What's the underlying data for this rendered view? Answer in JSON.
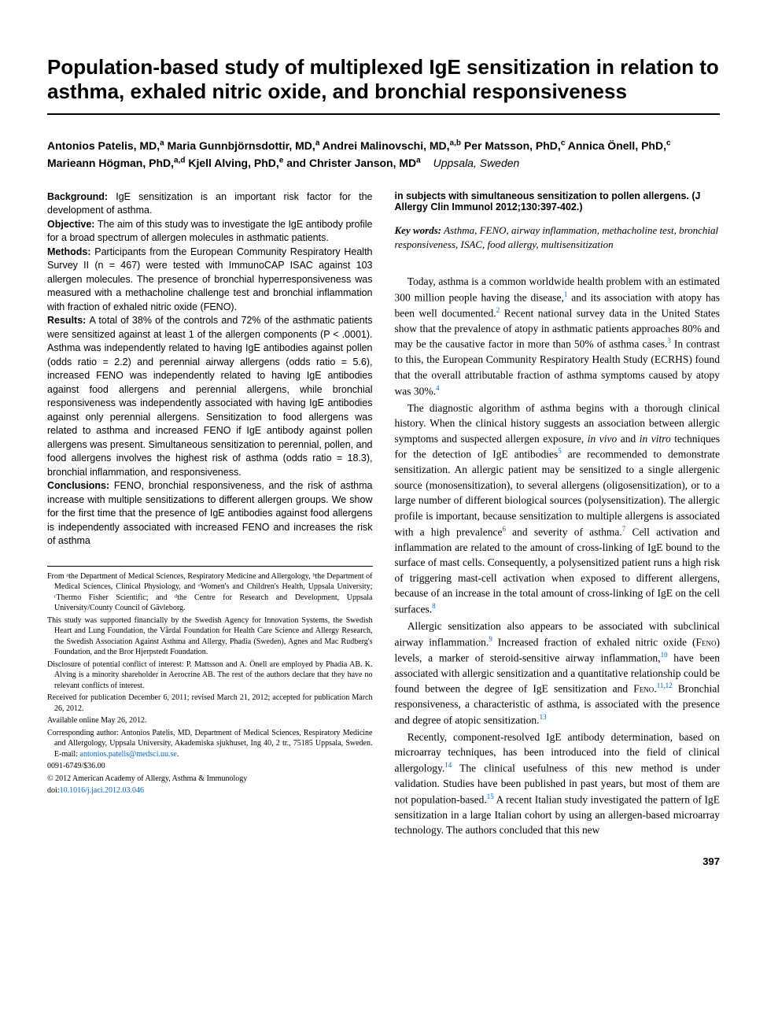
{
  "title": "Population-based study of multiplexed IgE sensitization in relation to asthma, exhaled nitric oxide, and bronchial responsiveness",
  "authors_html": "Antonios Patelis, MD,<sup>a</sup> Maria Gunnbjörnsdottir, MD,<sup>a</sup> Andrei Malinovschi, MD,<sup>a,b</sup> Per Matsson, PhD,<sup>c</sup> Annica Önell, PhD,<sup>c</sup> Marieann Högman, PhD,<sup>a,d</sup> Kjell Alving, PhD,<sup>e</sup> and Christer Janson, MD<sup>a</sup>",
  "location": "Uppsala, Sweden",
  "abstract": {
    "background": "IgE sensitization is an important risk factor for the development of asthma.",
    "objective": "The aim of this study was to investigate the IgE antibody profile for a broad spectrum of allergen molecules in asthmatic patients.",
    "methods": "Participants from the European Community Respiratory Health Survey II (n = 467) were tested with ImmunoCAP ISAC against 103 allergen molecules. The presence of bronchial hyperresponsiveness was measured with a methacholine challenge test and bronchial inflammation with fraction of exhaled nitric oxide (FENO).",
    "results": "A total of 38% of the controls and 72% of the asthmatic patients were sensitized against at least 1 of the allergen components (P < .0001). Asthma was independently related to having IgE antibodies against pollen (odds ratio = 2.2) and perennial airway allergens (odds ratio = 5.6), increased FENO was independently related to having IgE antibodies against food allergens and perennial allergens, while bronchial responsiveness was independently associated with having IgE antibodies against only perennial allergens. Sensitization to food allergens was related to asthma and increased FENO if IgE antibody against pollen allergens was present. Simultaneous sensitization to perennial, pollen, and food allergens involves the highest risk of asthma (odds ratio = 18.3), bronchial inflammation, and responsiveness.",
    "conclusions": "FENO, bronchial responsiveness, and the risk of asthma increase with multiple sensitizations to different allergen groups. We show for the first time that the presence of IgE antibodies against food allergens is independently associated with increased FENO and increases the risk of asthma",
    "conclusions_cont": "in subjects with simultaneous sensitization to pollen allergens. (J Allergy Clin Immunol 2012;130:397-402.)"
  },
  "keywords_label": "Key words:",
  "keywords": "Asthma, FENO, airway inflammation, methacholine test, bronchial responsiveness, ISAC, food allergy, multisensitization",
  "body": {
    "p1": "Today, asthma is a common worldwide health problem with an estimated 300 million people having the disease,¹ and its association with atopy has been well documented.² Recent national survey data in the United States show that the prevalence of atopy in asthmatic patients approaches 80% and may be the causative factor in more than 50% of asthma cases.³ In contrast to this, the European Community Respiratory Health Study (ECRHS) found that the overall attributable fraction of asthma symptoms caused by atopy was 30%.⁴",
    "p2": "The diagnostic algorithm of asthma begins with a thorough clinical history. When the clinical history suggests an association between allergic symptoms and suspected allergen exposure, in vivo and in vitro techniques for the detection of IgE antibodies⁵ are recommended to demonstrate sensitization. An allergic patient may be sensitized to a single allergenic source (monosensitization), to several allergens (oligosensitization), or to a large number of different biological sources (polysensitization). The allergic profile is important, because sensitization to multiple allergens is associated with a high prevalence⁶ and severity of asthma.⁷ Cell activation and inflammation are related to the amount of cross-linking of IgE bound to the surface of mast cells. Consequently, a polysensitized patient runs a high risk of triggering mast-cell activation when exposed to different allergens, because of an increase in the total amount of cross-linking of IgE on the cell surfaces.⁸",
    "p3": "Allergic sensitization also appears to be associated with subclinical airway inflammation.⁹ Increased fraction of exhaled nitric oxide (FENO) levels, a marker of steroid-sensitive airway inflammation,¹⁰ have been associated with allergic sensitization and a quantitative relationship could be found between the degree of IgE sensitization and FENO.¹¹,¹² Bronchial responsiveness, a characteristic of asthma, is associated with the presence and degree of atopic sensitization.¹³",
    "p4": "Recently, component-resolved IgE antibody determination, based on microarray techniques, has been introduced into the field of clinical allergology.¹⁴ The clinical usefulness of this new method is under validation. Studies have been published in past years, but most of them are not population-based.¹⁵ A recent Italian study investigated the pattern of IgE sensitization in a large Italian cohort by using an allergen-based microarray technology. The authors concluded that this new"
  },
  "footnotes": {
    "from": "From ᵃthe Department of Medical Sciences, Respiratory Medicine and Allergology, ᵇthe Department of Medical Sciences, Clinical Physiology, and ᵉWomen's and Children's Health, Uppsala University; ᶜThermo Fisher Scientific; and ᵈthe Centre for Research and Development, Uppsala University/County Council of Gävleborg.",
    "support": "This study was supported financially by the Swedish Agency for Innovation Systems, the Swedish Heart and Lung Foundation, the Vårdal Foundation for Health Care Science and Allergy Research, the Swedish Association Against Asthma and Allergy, Phadia (Sweden), Agnes and Mac Rudberg's Foundation, and the Bror Hjerpstedt Foundation.",
    "coi": "Disclosure of potential conflict of interest: P. Mattsson and A. Önell are employed by Phadia AB. K. Alving is a minority shareholder in Aerocrine AB. The rest of the authors declare that they have no relevant conflicts of interest.",
    "received": "Received for publication December 6, 2011; revised March 21, 2012; accepted for publication March 26, 2012.",
    "online": "Available online May 26, 2012.",
    "corresponding": "Corresponding author: Antonios Patelis, MD, Department of Medical Sciences, Respiratory Medicine and Allergology, Uppsala University, Akademiska sjukhuset, Ing 40, 2 tr., 75185 Uppsala, Sweden. E-mail: ",
    "email": "antonios.patelis@medsci.uu.se",
    "issn": "0091-6749/$36.00",
    "copyright": "© 2012 American Academy of Allergy, Asthma & Immunology",
    "doi_label": "doi:",
    "doi": "10.1016/j.jaci.2012.03.046"
  },
  "page_number": "397"
}
